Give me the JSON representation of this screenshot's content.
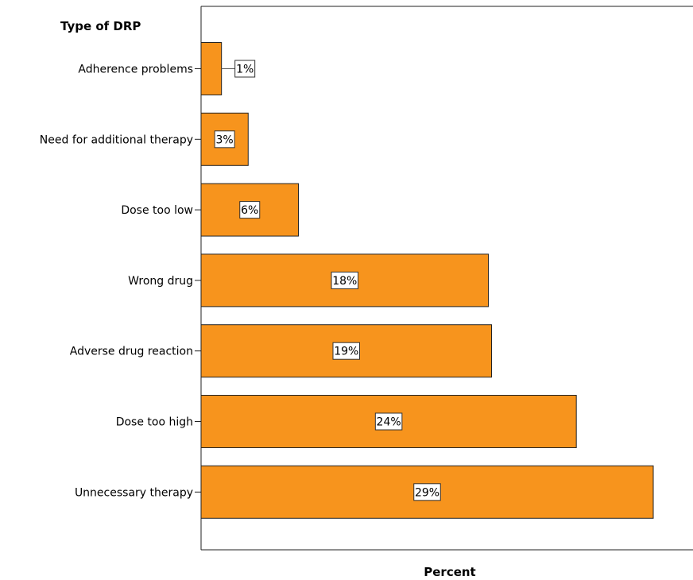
{
  "chart_data": {
    "type": "bar",
    "orientation": "horizontal",
    "categories": [
      "Adherence problems",
      "Need for additional therapy",
      "Dose too low",
      "Wrong drug",
      "Adverse drug reaction",
      "Dose too high",
      "Unnecessary therapy"
    ],
    "values": [
      1.3,
      3,
      6.2,
      18.3,
      18.5,
      23.9,
      28.8
    ],
    "data_labels": [
      "1%",
      "3%",
      "6%",
      "18%",
      "19%",
      "24%",
      "29%"
    ],
    "title": "",
    "xlabel": "Percent",
    "ylabel": "Type of DRP",
    "xlim": [
      0,
      31
    ],
    "bar_color": "#f7941d",
    "bar_stroke": "#222222",
    "grid": false,
    "legend": "none"
  }
}
